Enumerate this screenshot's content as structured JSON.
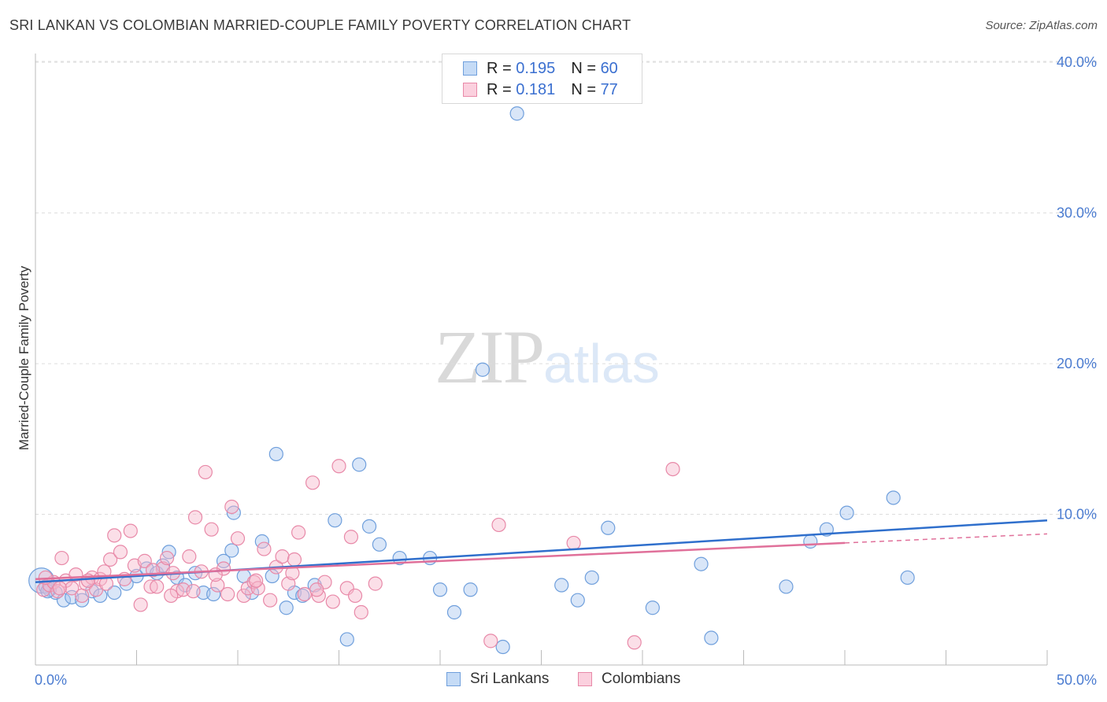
{
  "header": {
    "title": "SRI LANKAN VS COLOMBIAN MARRIED-COUPLE FAMILY POVERTY CORRELATION CHART",
    "source": "Source: ZipAtlas.com"
  },
  "legend": {
    "r_label": "R =",
    "n_label": "N =",
    "series": [
      {
        "r": "0.195",
        "n": "60"
      },
      {
        "r": "0.181",
        "n": "77"
      }
    ]
  },
  "bottom_legend": [
    "Sri Lankans",
    "Colombians"
  ],
  "watermark": {
    "zip": "ZIP",
    "atlas": "atlas"
  },
  "colors": {
    "blue_fill": "#aac8f0",
    "blue_stroke": "#6f9fdc",
    "blue_line": "#2f6fcc",
    "pink_fill": "#f6b8cc",
    "pink_stroke": "#e889a8",
    "pink_line": "#e0709a",
    "grid": "#dddddd",
    "tick_text": "#4a7bd0"
  },
  "chart_data": {
    "type": "scatter",
    "ylabel": "Married-Couple Family Poverty",
    "xlim": [
      0,
      50
    ],
    "ylim": [
      0,
      41
    ],
    "x_ticks": [
      "0.0%",
      "50.0%"
    ],
    "y_ticks": [
      {
        "value": 10,
        "label": "10.0%"
      },
      {
        "value": 20,
        "label": "20.0%"
      },
      {
        "value": 30,
        "label": "30.0%"
      },
      {
        "value": 40,
        "label": "40.0%"
      }
    ],
    "series": [
      {
        "name": "Sri Lankans",
        "color": "blue",
        "points": [
          [
            0.3,
            5.6
          ],
          [
            0.5,
            5.2
          ],
          [
            0.7,
            5.0
          ],
          [
            1.0,
            4.8
          ],
          [
            1.4,
            4.3
          ],
          [
            1.8,
            4.5
          ],
          [
            2.3,
            4.3
          ],
          [
            2.8,
            4.9
          ],
          [
            3.2,
            4.6
          ],
          [
            3.9,
            4.8
          ],
          [
            4.5,
            5.4
          ],
          [
            5.0,
            5.9
          ],
          [
            5.5,
            6.4
          ],
          [
            6.0,
            6.1
          ],
          [
            6.3,
            6.6
          ],
          [
            6.6,
            7.5
          ],
          [
            7.0,
            5.8
          ],
          [
            7.4,
            5.3
          ],
          [
            7.9,
            6.1
          ],
          [
            8.3,
            4.8
          ],
          [
            8.8,
            4.7
          ],
          [
            9.3,
            6.9
          ],
          [
            9.7,
            7.6
          ],
          [
            9.8,
            10.1
          ],
          [
            10.3,
            5.9
          ],
          [
            10.7,
            4.8
          ],
          [
            11.2,
            8.2
          ],
          [
            11.7,
            5.9
          ],
          [
            11.9,
            14.0
          ],
          [
            12.4,
            3.8
          ],
          [
            12.8,
            4.8
          ],
          [
            13.2,
            4.6
          ],
          [
            13.8,
            5.3
          ],
          [
            14.8,
            9.6
          ],
          [
            15.4,
            1.7
          ],
          [
            16.0,
            13.3
          ],
          [
            16.5,
            9.2
          ],
          [
            17.0,
            8.0
          ],
          [
            18.0,
            7.1
          ],
          [
            19.5,
            7.1
          ],
          [
            20.0,
            5.0
          ],
          [
            20.7,
            3.5
          ],
          [
            21.5,
            5.0
          ],
          [
            22.1,
            19.6
          ],
          [
            23.1,
            1.2
          ],
          [
            23.8,
            36.6
          ],
          [
            26.0,
            5.3
          ],
          [
            26.8,
            4.3
          ],
          [
            27.5,
            5.8
          ],
          [
            28.3,
            9.1
          ],
          [
            30.5,
            3.8
          ],
          [
            32.9,
            6.7
          ],
          [
            33.4,
            1.8
          ],
          [
            37.1,
            5.2
          ],
          [
            38.3,
            8.2
          ],
          [
            39.1,
            9.0
          ],
          [
            40.1,
            10.1
          ],
          [
            42.4,
            11.1
          ],
          [
            43.1,
            5.8
          ],
          [
            0.6,
            4.9
          ]
        ]
      },
      {
        "name": "Colombians",
        "color": "pink",
        "points": [
          [
            0.4,
            5.0
          ],
          [
            0.7,
            5.3
          ],
          [
            0.9,
            5.5
          ],
          [
            1.1,
            4.9
          ],
          [
            1.3,
            7.1
          ],
          [
            1.5,
            5.6
          ],
          [
            1.8,
            5.1
          ],
          [
            2.0,
            6.0
          ],
          [
            2.3,
            4.6
          ],
          [
            2.5,
            5.4
          ],
          [
            2.8,
            5.8
          ],
          [
            3.0,
            5.0
          ],
          [
            3.2,
            5.7
          ],
          [
            3.5,
            5.4
          ],
          [
            3.7,
            7.0
          ],
          [
            3.9,
            8.6
          ],
          [
            4.2,
            7.5
          ],
          [
            4.4,
            5.7
          ],
          [
            4.7,
            8.9
          ],
          [
            4.9,
            6.6
          ],
          [
            5.2,
            4.0
          ],
          [
            5.4,
            6.9
          ],
          [
            5.7,
            5.2
          ],
          [
            6.0,
            5.2
          ],
          [
            6.3,
            6.4
          ],
          [
            6.5,
            7.1
          ],
          [
            6.8,
            6.1
          ],
          [
            7.0,
            4.9
          ],
          [
            7.3,
            5.0
          ],
          [
            7.6,
            7.2
          ],
          [
            7.9,
            9.8
          ],
          [
            8.2,
            6.2
          ],
          [
            8.4,
            12.8
          ],
          [
            8.7,
            9.0
          ],
          [
            9.0,
            5.3
          ],
          [
            9.3,
            6.4
          ],
          [
            9.5,
            4.7
          ],
          [
            9.7,
            10.5
          ],
          [
            10.0,
            8.4
          ],
          [
            10.3,
            4.6
          ],
          [
            10.5,
            5.1
          ],
          [
            10.8,
            5.5
          ],
          [
            11.0,
            5.1
          ],
          [
            11.3,
            7.7
          ],
          [
            11.6,
            4.3
          ],
          [
            11.9,
            6.5
          ],
          [
            12.2,
            7.2
          ],
          [
            12.5,
            5.4
          ],
          [
            12.8,
            7.0
          ],
          [
            13.0,
            8.8
          ],
          [
            13.3,
            4.7
          ],
          [
            13.7,
            12.1
          ],
          [
            14.0,
            4.6
          ],
          [
            14.3,
            5.5
          ],
          [
            14.7,
            4.2
          ],
          [
            15.0,
            13.2
          ],
          [
            15.4,
            5.1
          ],
          [
            15.6,
            8.5
          ],
          [
            16.1,
            3.5
          ],
          [
            16.8,
            5.4
          ],
          [
            22.5,
            1.6
          ],
          [
            22.9,
            9.3
          ],
          [
            26.6,
            8.1
          ],
          [
            29.6,
            1.5
          ],
          [
            31.5,
            13.0
          ],
          [
            0.5,
            5.8
          ],
          [
            1.2,
            5.1
          ],
          [
            2.6,
            5.6
          ],
          [
            3.4,
            6.2
          ],
          [
            5.8,
            6.3
          ],
          [
            6.7,
            4.6
          ],
          [
            7.8,
            4.9
          ],
          [
            8.9,
            6.0
          ],
          [
            10.9,
            5.6
          ],
          [
            12.7,
            6.1
          ],
          [
            13.9,
            5.0
          ],
          [
            15.8,
            4.6
          ]
        ]
      }
    ],
    "trend_lines": [
      {
        "series": "Sri Lankans",
        "from": [
          0,
          5.5
        ],
        "to": [
          50,
          9.6
        ]
      },
      {
        "series": "Colombians",
        "from": [
          0,
          5.7
        ],
        "to": [
          40,
          8.1
        ],
        "dashed_to": [
          50,
          8.7
        ]
      }
    ]
  }
}
